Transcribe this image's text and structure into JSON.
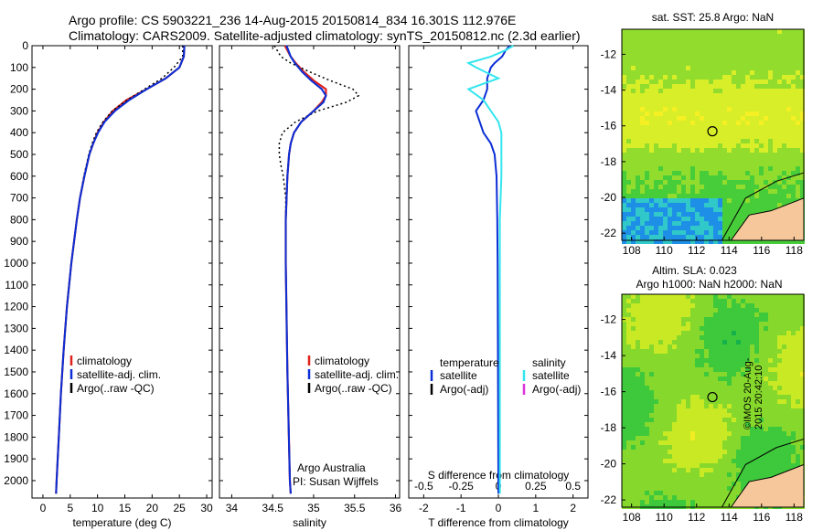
{
  "header": {
    "line1": "Argo profile: CS 5903221_236 14-Aug-2015 20150814_834 16.301S 112.976E",
    "line2": "Climatology: CARS2009. Satellite-adjusted climatology: synTS_20150812.nc (2.3d earlier)"
  },
  "colors": {
    "climatology": "#e0201a",
    "satellite": "#0c2fd6",
    "argo": "#000000",
    "sat_salinity": "#33e6ee",
    "argo_adj_sal": "#dd33dd",
    "land": "#f6c79a"
  },
  "depth_ticks": [
    0,
    100,
    200,
    300,
    400,
    500,
    600,
    700,
    800,
    900,
    1000,
    1100,
    1200,
    1300,
    1400,
    1500,
    1600,
    1700,
    1800,
    1900,
    2000
  ],
  "chart_data": [
    {
      "type": "line",
      "xlabel": "temperature (deg C)",
      "xlim": [
        -2,
        31
      ],
      "ylim": [
        2080,
        0
      ],
      "x_ticks": [
        "0",
        "5",
        "10",
        "15",
        "20",
        "25",
        "30"
      ],
      "x_tick_values": [
        0,
        5,
        10,
        15,
        20,
        25,
        30
      ],
      "legend": [
        "climatology",
        "satellite-adj. clim.",
        "Argo(..raw -QC)"
      ],
      "depth": [
        0,
        50,
        100,
        150,
        200,
        250,
        300,
        350,
        400,
        450,
        500,
        600,
        700,
        800,
        900,
        1000,
        1200,
        1400,
        1600,
        1800,
        2000,
        2060
      ],
      "series": [
        {
          "name": "climatology",
          "values": [
            25.9,
            25.8,
            25.0,
            22.5,
            19.0,
            15.3,
            12.8,
            11.2,
            10.0,
            9.2,
            8.5,
            7.6,
            6.8,
            6.2,
            5.7,
            5.2,
            4.4,
            3.8,
            3.3,
            2.9,
            2.5,
            2.4
          ]
        },
        {
          "name": "satellite-adj. clim.",
          "values": [
            25.9,
            25.8,
            25.0,
            22.5,
            19.0,
            15.8,
            13.2,
            11.3,
            10.1,
            9.2,
            8.5,
            7.6,
            6.8,
            6.2,
            5.7,
            5.2,
            4.4,
            3.8,
            3.3,
            2.9,
            2.5,
            2.4
          ]
        },
        {
          "name": "Argo(..raw -QC)",
          "values": [
            25.6,
            25.6,
            24.0,
            21.8,
            18.6,
            15.4,
            12.7,
            11.0,
            9.8,
            9.0,
            8.4,
            7.5,
            6.8,
            6.2,
            5.7,
            5.2,
            4.4,
            3.8,
            3.3,
            2.9,
            2.5,
            2.4
          ]
        }
      ]
    },
    {
      "type": "line",
      "xlabel": "salinity",
      "xlim": [
        33.85,
        36.05
      ],
      "ylim": [
        2080,
        0
      ],
      "x_ticks": [
        "34",
        "34.5",
        "35",
        "35.5",
        "36"
      ],
      "x_tick_values": [
        34,
        34.5,
        35,
        35.5,
        36
      ],
      "legend": [
        "climatology",
        "satellite-adj. clim.",
        "Argo(..raw -QC)"
      ],
      "annotation": [
        "Argo Australia",
        "PI: Susan Wijffels"
      ],
      "depth": [
        0,
        50,
        80,
        120,
        160,
        200,
        230,
        260,
        300,
        350,
        400,
        450,
        500,
        550,
        600,
        700,
        800,
        1000,
        1500,
        2000,
        2060
      ],
      "series": [
        {
          "name": "climatology",
          "values": [
            34.65,
            34.72,
            34.78,
            34.88,
            35.0,
            35.15,
            35.15,
            35.1,
            35.0,
            34.85,
            34.76,
            34.72,
            34.7,
            34.69,
            34.68,
            34.67,
            34.66,
            34.66,
            34.68,
            34.71,
            34.72
          ]
        },
        {
          "name": "satellite-adj. clim.",
          "values": [
            34.67,
            34.72,
            34.77,
            34.86,
            34.97,
            35.1,
            35.15,
            35.12,
            35.0,
            34.85,
            34.76,
            34.72,
            34.7,
            34.69,
            34.68,
            34.67,
            34.66,
            34.66,
            34.68,
            34.71,
            34.72
          ]
        },
        {
          "name": "Argo(..raw -QC)",
          "values": [
            34.52,
            34.6,
            34.72,
            34.95,
            35.2,
            35.48,
            35.55,
            35.4,
            35.05,
            34.78,
            34.62,
            34.58,
            34.58,
            34.6,
            34.63,
            34.66,
            34.66,
            34.66,
            34.68,
            34.71,
            34.72
          ]
        }
      ]
    },
    {
      "type": "line",
      "xlabel": "T difference from climatology",
      "top_label": "S difference from climatology",
      "xlim": [
        -2.4,
        2.4
      ],
      "ylim": [
        2080,
        0
      ],
      "x_ticks": [
        "-2",
        "-1",
        "0",
        "1",
        "2"
      ],
      "x_tick_values": [
        -2,
        -1,
        0,
        1,
        2
      ],
      "top_ticks": [
        "-0.5",
        "-0.25",
        "0",
        "0.25",
        "0.5"
      ],
      "top_tick_values": [
        -0.5,
        -0.25,
        0,
        0.25,
        0.5
      ],
      "legend_temperature": [
        "temperature",
        "satellite",
        "Argo(-adj)"
      ],
      "legend_salinity": [
        "salinity",
        "satellite",
        "Argo(-adj)"
      ],
      "depth": [
        0,
        20,
        50,
        80,
        100,
        150,
        200,
        250,
        300,
        350,
        400,
        450,
        500,
        600,
        800,
        1000,
        1500,
        2000,
        2060
      ],
      "series": [
        {
          "name": "temperature satellite",
          "values": [
            0.3,
            0.2,
            0.1,
            -0.1,
            -0.2,
            -0.3,
            -0.3,
            -0.4,
            -0.6,
            -0.5,
            -0.4,
            -0.2,
            -0.1,
            -0.05,
            -0.03,
            -0.02,
            -0.01,
            0,
            0
          ]
        },
        {
          "name": "salinity satellite",
          "values": [
            0.1,
            0.05,
            -0.05,
            -0.2,
            -0.15,
            0.0,
            -0.2,
            -0.1,
            -0.05,
            0.0,
            0.02,
            0.02,
            0.02,
            0.02,
            0.01,
            0.01,
            0.01,
            0.01,
            0.01
          ]
        }
      ]
    }
  ],
  "maps": [
    {
      "title": "sat. SST: 25.8 Argo: NaN",
      "y_ticks": [
        "-12",
        "-14",
        "-16",
        "-18",
        "-20",
        "-22"
      ],
      "y_tick_values": [
        -12,
        -14,
        -16,
        -18,
        -20,
        -22
      ],
      "x_ticks": [
        "108",
        "110",
        "112",
        "114",
        "116",
        "118"
      ],
      "x_tick_values": [
        108,
        110,
        112,
        114,
        116,
        118
      ],
      "xlim": [
        107.4,
        118.6
      ],
      "ylim": [
        -22.4,
        -10.6
      ],
      "marker": [
        112.976,
        -16.301
      ],
      "palette": [
        "#19bd4a",
        "#48cd3a",
        "#92dc2e",
        "#d8ee28",
        "#f4f023"
      ]
    },
    {
      "title_line1": "Altim. SLA: 0.023",
      "title_line2": "Argo h1000: NaN h2000: NaN",
      "y_ticks": [
        "-12",
        "-14",
        "-16",
        "-18",
        "-20",
        "-22"
      ],
      "y_tick_values": [
        -12,
        -14,
        -16,
        -18,
        -20,
        -22
      ],
      "x_ticks": [
        "108",
        "110",
        "112",
        "114",
        "116",
        "118"
      ],
      "x_tick_values": [
        108,
        110,
        112,
        114,
        116,
        118
      ],
      "xlim": [
        107.4,
        118.6
      ],
      "ylim": [
        -22.4,
        -10.6
      ],
      "marker": [
        112.976,
        -16.301
      ],
      "palette": [
        "#15b24c",
        "#3ec83b",
        "#86d92c",
        "#c8e923",
        "#f0ee22"
      ]
    }
  ],
  "stamp": "©IMOS 20-Aug-2015 20:42:10"
}
